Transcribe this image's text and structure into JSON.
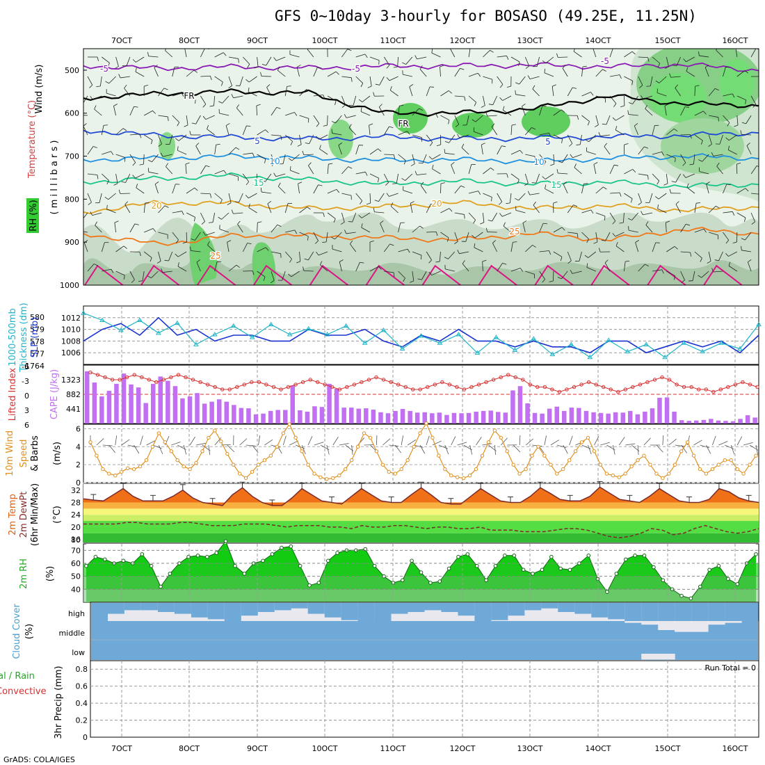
{
  "title": "GFS 0~10day 3-hourly for BOSASO (49.25E, 11.25N)",
  "credit": "GrADS: COLA/IGES",
  "date_ticks": [
    "7OCT",
    "8OCT",
    "9OCT",
    "10OCT",
    "11OCT",
    "12OCT",
    "13OCT",
    "14OCT",
    "15OCT",
    "16OCT"
  ],
  "colors": {
    "rh_green": "#33cc33",
    "temp_purple": "#8a1ab4",
    "freezing": "#000000",
    "t5": "#1f49d6",
    "t10": "#1e90e0",
    "t15": "#19c48a",
    "t20": "#e0a020",
    "t25": "#f07818",
    "t30": "#dc1486",
    "slp_blue": "#1932d0",
    "thick_cyan": "#20b4c8",
    "li_red": "#d83030",
    "cape_purple": "#c070f0",
    "wind_orange": "#e0901e",
    "rh2_green": "#00d800",
    "cloud_blue": "#6ea9d8",
    "cloud_gray": "#e8e8ee"
  },
  "panels": {
    "upper": {
      "ylabel_a": "Wind (m/s)",
      "ylabel_b": "Temperature (°C)",
      "ylabel_c": "RH (%)",
      "ylabel_d": "( m i l l i b a r s )",
      "pressure_levels": [
        500,
        600,
        700,
        800,
        900,
        1000
      ],
      "contour_labels": {
        "m5": "-5",
        "fr": "FR",
        "p5": "5",
        "p10": "10",
        "p15": "15",
        "p20": "20",
        "p25": "25"
      }
    },
    "thick_slp": {
      "ylabel_a": "1000-500mb",
      "ylabel_b": "Thickness (dm)",
      "ylabel_c": "SLP (mb)",
      "left_ticks": [
        "580",
        "579",
        "578",
        "577",
        "1764"
      ],
      "right_ticks": [
        "1012",
        "1010",
        "1008",
        "1006"
      ]
    },
    "li_cape": {
      "ylabel_a": "Lifted Index",
      "ylabel_b": "CAPE (J/kg)",
      "left_ticks": [
        "-6",
        "-3",
        "0",
        "3",
        "6"
      ],
      "right_ticks": [
        "1323",
        "882",
        "441"
      ]
    },
    "wind10": {
      "ylabel_a": "10m Wind",
      "ylabel_b": "Speed",
      "ylabel_c": "& Barbs",
      "ylabel_d": "(m/s)",
      "ticks": [
        "6",
        "4",
        "2",
        "0"
      ]
    },
    "temp2m": {
      "ylabel_a": "2m Temp",
      "ylabel_b": "2m DewPt",
      "ylabel_c": "(6hr Min/Max)",
      "ylabel_d": "(°C)",
      "ticks": [
        "32",
        "28",
        "24",
        "20",
        "16",
        "80"
      ]
    },
    "rh2m": {
      "ylabel_a": "2m RH",
      "ylabel_b": "(%)",
      "ticks": [
        "70",
        "60",
        "50",
        "40"
      ]
    },
    "cloud": {
      "ylabel_a": "Cloud Cover",
      "ylabel_b": "(%)",
      "levels": [
        "high",
        "middle",
        "low"
      ]
    },
    "precip": {
      "ylabel_a": "tal / Rain",
      "ylabel_b": "Convective",
      "ylabel_c": "3hr Precip (mm)",
      "ticks": [
        "0.8",
        "0.6",
        "0.4",
        "0.2",
        "0"
      ],
      "run_total": "Run Total = 0"
    }
  },
  "chart_data": [
    {
      "type": "area",
      "title": "GFS 0~10day 3-hourly for BOSASO (49.25E, 11.25N)",
      "description_of_axes": "x: forecast time, y: pressure (millibars)",
      "x": [
        "7OCT",
        "8OCT",
        "9OCT",
        "10OCT",
        "11OCT",
        "12OCT",
        "13OCT",
        "14OCT",
        "15OCT",
        "16OCT"
      ],
      "ylim": [
        1000,
        450
      ],
      "series": [
        {
          "name": "-5",
          "values_mb": [
            490,
            496,
            492,
            495,
            491,
            490,
            488,
            492,
            487,
            500
          ]
        },
        {
          "name": "FR",
          "values_mb": [
            565,
            555,
            550,
            553,
            600,
            600,
            590,
            560,
            578,
            582
          ]
        },
        {
          "name": "5",
          "values_mb": [
            640,
            652,
            656,
            660,
            655,
            660,
            658,
            655,
            652,
            645
          ]
        },
        {
          "name": "10",
          "values_mb": [
            708,
            705,
            700,
            705,
            710,
            708,
            712,
            705,
            700,
            705
          ]
        },
        {
          "name": "15",
          "values_mb": [
            760,
            752,
            745,
            755,
            765,
            758,
            765,
            760,
            770,
            765
          ]
        },
        {
          "name": "20",
          "values_mb": [
            830,
            808,
            810,
            822,
            818,
            808,
            822,
            815,
            826,
            818
          ]
        },
        {
          "name": "25",
          "values_mb": [
            880,
            905,
            885,
            885,
            890,
            895,
            880,
            895,
            870,
            880
          ]
        }
      ]
    },
    {
      "type": "line",
      "ylabel": "SLP (mb)",
      "ylim": [
        1004,
        1014
      ],
      "series": [
        {
          "name": "SLP (mb)",
          "values": [
            1008,
            1010,
            1011,
            1009,
            1012,
            1009,
            1010,
            1008,
            1009,
            1009,
            1008,
            1008,
            1010,
            1009,
            1009,
            1010,
            1008,
            1007,
            1009,
            1008,
            1010,
            1008,
            1008,
            1007,
            1008,
            1007,
            1007,
            1006,
            1008,
            1008,
            1006,
            1007,
            1008,
            1007,
            1008,
            1006,
            1009
          ]
        },
        {
          "name": "Thickness (dm)",
          "values": [
            580.1,
            579.6,
            578.9,
            579.6,
            578.7,
            579.4,
            577.9,
            578.6,
            579.2,
            578.4,
            579.3,
            578.6,
            579.0,
            578.6,
            579.2,
            578.0,
            578.9,
            577.6,
            578.5,
            578.0,
            578.6,
            577.3,
            578.4,
            577.5,
            578.3,
            577.2,
            577.9,
            577.0,
            578.2,
            577.4,
            577.9,
            577.0,
            578.0,
            577.4,
            578.0,
            577.6,
            579.3
          ]
        }
      ]
    },
    {
      "type": "bar",
      "ylabel": "CAPE (J/kg)",
      "values": [
        1580,
        1240,
        820,
        990,
        1200,
        1510,
        1180,
        1090,
        620,
        1200,
        1420,
        1290,
        1130,
        760,
        820,
        920,
        600,
        660,
        730,
        660,
        560,
        470,
        460,
        280,
        300,
        380,
        410,
        410,
        1150,
        400,
        360,
        520,
        500,
        1200,
        1050,
        480,
        480,
        450,
        460,
        420,
        340,
        310,
        380,
        440,
        380,
        330,
        340,
        310,
        330,
        260,
        320,
        310,
        320,
        360,
        380,
        390,
        350,
        330,
        1000,
        1130,
        610,
        320,
        300,
        450,
        510,
        380,
        480,
        470,
        380,
        340,
        320,
        300,
        340,
        330,
        380,
        280,
        360,
        460,
        780,
        790,
        360,
        100,
        80,
        90,
        110,
        140,
        90,
        80,
        70,
        140,
        250,
        180
      ]
    },
    {
      "type": "line",
      "ylabel": "Lifted Index",
      "ylim": [
        6,
        -6
      ],
      "values": [
        -4.5,
        -4,
        -3.5,
        -3,
        -3,
        -3.5,
        -4,
        -3.5,
        -3,
        -2.5,
        -3,
        -3.5,
        -4,
        -3.5,
        -3,
        -2.5,
        -2,
        -1.5,
        -1,
        -1,
        -1.5,
        -2,
        -2.5,
        -2.5,
        -2,
        -1.5,
        -1,
        -1.5,
        -2,
        -2.5,
        -3,
        -2.5,
        -2,
        -1.5,
        -1,
        -1.5,
        -2,
        -2.5,
        -3,
        -3.5,
        -3,
        -2.5,
        -2,
        -1.5,
        -1,
        -1,
        -1.5,
        -2,
        -2.5,
        -2,
        -1.5,
        -1,
        -1.5,
        -2,
        -2.5,
        -3,
        -3.5,
        -4,
        -3.5,
        -3,
        -2,
        -1.5,
        -1.5,
        -1,
        -0.5,
        -1,
        -1.5,
        -2,
        -2.5,
        -2,
        -1.5,
        -1,
        -0.5,
        -1,
        -1.5,
        -2,
        -2.5,
        -3,
        -3.5,
        -3,
        -2,
        -1.5,
        -1.5,
        -1,
        -1,
        -0.5,
        -1,
        -1.5,
        -2,
        -2.5,
        -2,
        -1.5
      ]
    },
    {
      "type": "line",
      "ylabel": "10m Wind Speed (m/s)",
      "ylim": [
        0,
        6.5
      ],
      "values": [
        4.5,
        3.0,
        1.5,
        1.0,
        0.8,
        1.2,
        1.6,
        1.5,
        1.8,
        2.5,
        4.0,
        5.5,
        4.5,
        3.5,
        2.5,
        1.8,
        1.5,
        2.2,
        3.5,
        5.0,
        5.8,
        4.6,
        3.2,
        2.0,
        1.0,
        0.5,
        1.2,
        2.0,
        2.5,
        3.0,
        4.0,
        5.5,
        6.5,
        5.0,
        3.5,
        2.0,
        1.0,
        0.6,
        0.4,
        0.5,
        0.8,
        1.5,
        2.5,
        4.0,
        5.5,
        5.0,
        3.5,
        2.0,
        1.2,
        1.0,
        1.5,
        2.5,
        4.0,
        5.5,
        6.6,
        5.0,
        3.0,
        1.5,
        0.8,
        0.6,
        0.5,
        0.8,
        1.5,
        3.0,
        4.5,
        5.8,
        5.0,
        3.5,
        2.0,
        1.0,
        1.5,
        3.0,
        4.0,
        3.0,
        2.0,
        1.0,
        1.5,
        2.5,
        3.5,
        4.5,
        5.0,
        3.5,
        2.0,
        1.0,
        0.8,
        0.6,
        1.0,
        1.8,
        2.5,
        3.0,
        2.0,
        1.0,
        0.5,
        1.0,
        2.0,
        3.5,
        4.5,
        3.0,
        1.5,
        1.0,
        1.5,
        2.0,
        2.5,
        2.5,
        1.5,
        1.0,
        2.0,
        3.0
      ]
    },
    {
      "type": "area",
      "ylabel": "2m Temp (°C)",
      "ylim": [
        15,
        34
      ],
      "series": [
        {
          "name": "2m Temp",
          "values": [
            29.2,
            28.8,
            28.5,
            30.5,
            32.5,
            30,
            28.5,
            28.5,
            28.5,
            30,
            32,
            29.5,
            28,
            27.5,
            27,
            30.5,
            32.8,
            30,
            28,
            27,
            27,
            29.5,
            32.5,
            30.5,
            28.5,
            28,
            27.5,
            30,
            32.5,
            30.5,
            28.5,
            28,
            28,
            30.5,
            32.8,
            30.5,
            28,
            27.5,
            27.5,
            30,
            32.5,
            30.5,
            28.5,
            28,
            28,
            30,
            32.8,
            31,
            29,
            28.5,
            28.5,
            30,
            33,
            31,
            29,
            28.5,
            28,
            30,
            32.5,
            30.5,
            28.5,
            28,
            28,
            29,
            32.5,
            31.5,
            29.5,
            28.5,
            28
          ]
        },
        {
          "name": "2m DewPt",
          "values": [
            21,
            21,
            21,
            21,
            21.5,
            21.5,
            21,
            21,
            21,
            21.5,
            21.5,
            21,
            20.5,
            20.5,
            20.5,
            21,
            21,
            21,
            20.5,
            20,
            20.5,
            20.5,
            20.5,
            20,
            20,
            19.5,
            20.5,
            20,
            20,
            20.5,
            20.5,
            20,
            19.5,
            20,
            20,
            19.5,
            19.5,
            20,
            19,
            19,
            19,
            18.5,
            18.5,
            18.5,
            19,
            19.5,
            19.5,
            19,
            18,
            17,
            16.5,
            17,
            18,
            19.5,
            19,
            17.5,
            18,
            19.5,
            20.5,
            19.5,
            18.5,
            18,
            18.5,
            19.5
          ]
        }
      ]
    },
    {
      "type": "area",
      "ylabel": "2m RH (%)",
      "ylim": [
        30,
        75
      ],
      "values": [
        58,
        65,
        63,
        60,
        62,
        60,
        67,
        58,
        42,
        52,
        60,
        65,
        66,
        65,
        68,
        77,
        58,
        52,
        60,
        62,
        67,
        72,
        73,
        58,
        43,
        45,
        62,
        68,
        70,
        70,
        71,
        58,
        50,
        45,
        47,
        62,
        53,
        45,
        46,
        56,
        65,
        67,
        58,
        47,
        58,
        66,
        66,
        55,
        52,
        55,
        65,
        56,
        55,
        60,
        66,
        48,
        38,
        52,
        63,
        66,
        66,
        57,
        47,
        40,
        35,
        33,
        42,
        55,
        58,
        48,
        44,
        60,
        67
      ]
    },
    {
      "type": "area",
      "ylabel": "Cloud Cover (%)",
      "series": [
        {
          "name": "high",
          "values": [
            100,
            60,
            40,
            40,
            50,
            60,
            80,
            90,
            100,
            70,
            50,
            40,
            30,
            60,
            80,
            95,
            100,
            100,
            60,
            50,
            40,
            50,
            70,
            100,
            95,
            70,
            40,
            30,
            50,
            60,
            80,
            90,
            100,
            100,
            100,
            100,
            100,
            100,
            100,
            100
          ]
        },
        {
          "name": "middle",
          "values": [
            0,
            0,
            0,
            0,
            0,
            0,
            0,
            0,
            0,
            0,
            0,
            0,
            0,
            0,
            0,
            0,
            0,
            0,
            0,
            0,
            0,
            0,
            0,
            0,
            0,
            0,
            0,
            0,
            0,
            0,
            0,
            0,
            10,
            20,
            50,
            60,
            60,
            20,
            10,
            0
          ]
        },
        {
          "name": "low",
          "values": [
            0,
            0,
            0,
            0,
            0,
            0,
            0,
            0,
            0,
            0,
            0,
            0,
            0,
            0,
            0,
            0,
            0,
            0,
            0,
            0,
            0,
            0,
            0,
            0,
            0,
            0,
            0,
            0,
            0,
            0,
            0,
            0,
            0,
            30,
            30,
            0,
            0,
            0,
            0,
            0
          ]
        }
      ]
    },
    {
      "type": "bar",
      "ylabel": "3hr Precip (mm)",
      "ylim": [
        0,
        0.9
      ],
      "values": [
        0
      ]
    }
  ]
}
